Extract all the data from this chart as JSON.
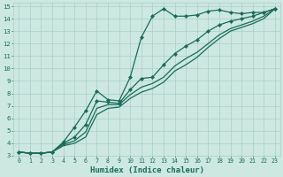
{
  "title": "",
  "xlabel": "Humidex (Indice chaleur)",
  "ylabel": "",
  "bg_color": "#cce8e0",
  "line_color": "#1a6b5a",
  "grid_color": "#aacfc8",
  "xlim": [
    -0.5,
    23.5
  ],
  "ylim": [
    3,
    15.3
  ],
  "xticks": [
    0,
    1,
    2,
    3,
    4,
    5,
    6,
    7,
    8,
    9,
    10,
    11,
    12,
    13,
    14,
    15,
    16,
    17,
    18,
    19,
    20,
    21,
    22,
    23
  ],
  "yticks": [
    3,
    4,
    5,
    6,
    7,
    8,
    9,
    10,
    11,
    12,
    13,
    14,
    15
  ],
  "lines": [
    {
      "x": [
        0,
        1,
        2,
        3,
        4,
        5,
        6,
        7,
        8,
        9,
        10,
        11,
        12,
        13,
        14,
        15,
        16,
        17,
        18,
        19,
        20,
        21,
        22,
        23
      ],
      "y": [
        3.3,
        3.2,
        3.2,
        3.3,
        4.1,
        5.3,
        6.6,
        8.2,
        7.5,
        7.4,
        9.3,
        12.5,
        14.2,
        14.8,
        14.2,
        14.2,
        14.3,
        14.6,
        14.7,
        14.5,
        14.4,
        14.5,
        14.5,
        14.8
      ],
      "marker": "D",
      "markersize": 2.0,
      "linewidth": 0.9
    },
    {
      "x": [
        0,
        1,
        2,
        3,
        4,
        5,
        6,
        7,
        8,
        9,
        10,
        11,
        12,
        13,
        14,
        15,
        16,
        17,
        18,
        19,
        20,
        21,
        22,
        23
      ],
      "y": [
        3.3,
        3.2,
        3.2,
        3.3,
        4.0,
        4.5,
        5.5,
        7.4,
        7.3,
        7.2,
        8.3,
        9.2,
        9.3,
        10.3,
        11.2,
        11.8,
        12.3,
        13.0,
        13.5,
        13.8,
        14.0,
        14.2,
        14.5,
        14.8
      ],
      "marker": "D",
      "markersize": 2.0,
      "linewidth": 0.9
    },
    {
      "x": [
        0,
        1,
        2,
        3,
        4,
        5,
        6,
        7,
        8,
        9,
        10,
        11,
        12,
        13,
        14,
        15,
        16,
        17,
        18,
        19,
        20,
        21,
        22,
        23
      ],
      "y": [
        3.3,
        3.2,
        3.2,
        3.3,
        3.9,
        4.2,
        4.9,
        6.8,
        7.1,
        7.1,
        7.9,
        8.5,
        8.8,
        9.3,
        10.2,
        10.8,
        11.3,
        12.0,
        12.7,
        13.2,
        13.5,
        13.8,
        14.2,
        14.8
      ],
      "marker": null,
      "markersize": 0,
      "linewidth": 0.9
    },
    {
      "x": [
        0,
        1,
        2,
        3,
        4,
        5,
        6,
        7,
        8,
        9,
        10,
        11,
        12,
        13,
        14,
        15,
        16,
        17,
        18,
        19,
        20,
        21,
        22,
        23
      ],
      "y": [
        3.3,
        3.2,
        3.2,
        3.3,
        3.8,
        4.0,
        4.5,
        6.3,
        6.8,
        6.9,
        7.6,
        8.1,
        8.4,
        8.9,
        9.8,
        10.3,
        10.9,
        11.7,
        12.4,
        13.0,
        13.3,
        13.6,
        14.0,
        14.8
      ],
      "marker": null,
      "markersize": 0,
      "linewidth": 0.9
    }
  ]
}
